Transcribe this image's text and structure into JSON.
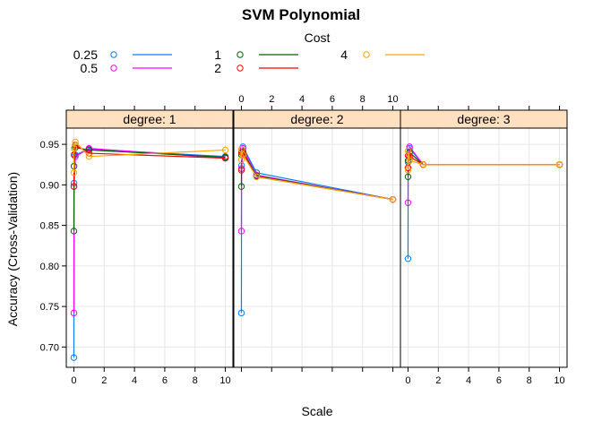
{
  "chart_data": {
    "type": "line",
    "title": "SVM Polynomial",
    "xlabel": "Scale",
    "ylabel": "Accuracy (Cross-Validation)",
    "legend_title": "Cost",
    "legend_placement": "top",
    "grid": true,
    "strip_color": "#ffe0c0",
    "xlim": [
      -0.5,
      10.5
    ],
    "ylim": [
      0.675,
      0.97
    ],
    "x_ticks": [
      0,
      2,
      4,
      6,
      8,
      10
    ],
    "x_tick_labels": [
      "0",
      "2",
      "4",
      "6",
      "8",
      "10"
    ],
    "y_ticks": [
      0.7,
      0.75,
      0.8,
      0.85,
      0.9,
      0.95
    ],
    "y_tick_labels": [
      "0.70",
      "0.75",
      "0.80",
      "0.85",
      "0.90",
      "0.95"
    ],
    "x": [
      0.001,
      0.01,
      0.1,
      1,
      10
    ],
    "series": [
      {
        "name": "0.25",
        "color": "#0080ff"
      },
      {
        "name": "0.5",
        "color": "#ff00ff"
      },
      {
        "name": "1",
        "color": "#006400"
      },
      {
        "name": "2",
        "color": "#ff0000"
      },
      {
        "name": "4",
        "color": "#ffa500"
      }
    ],
    "panels": [
      {
        "label": "degree: 1",
        "values": [
          [
            0.687,
            0.902,
            0.937,
            0.944,
            0.935
          ],
          [
            0.742,
            0.898,
            0.935,
            0.945,
            0.933
          ],
          [
            0.843,
            0.923,
            0.946,
            0.943,
            0.934
          ],
          [
            0.898,
            0.937,
            0.949,
            0.939,
            0.933
          ],
          [
            0.915,
            0.945,
            0.953,
            0.935,
            0.943
          ]
        ]
      },
      {
        "label": "degree: 2",
        "values": [
          [
            0.742,
            0.924,
            0.947,
            0.915,
            0.882
          ],
          [
            0.843,
            0.92,
            0.945,
            0.912,
            0.882
          ],
          [
            0.898,
            0.937,
            0.941,
            0.911,
            0.882
          ],
          [
            0.918,
            0.94,
            0.939,
            0.91,
            0.882
          ],
          [
            0.931,
            0.944,
            0.937,
            0.91,
            0.882
          ]
        ]
      },
      {
        "label": "degree: 3",
        "values": [
          [
            0.809,
            0.928,
            0.945,
            0.925,
            0.925
          ],
          [
            0.878,
            0.921,
            0.947,
            0.925,
            0.925
          ],
          [
            0.91,
            0.93,
            0.94,
            0.925,
            0.925
          ],
          [
            0.921,
            0.936,
            0.935,
            0.925,
            0.925
          ],
          [
            0.918,
            0.942,
            0.93,
            0.925,
            0.925
          ]
        ]
      }
    ]
  }
}
